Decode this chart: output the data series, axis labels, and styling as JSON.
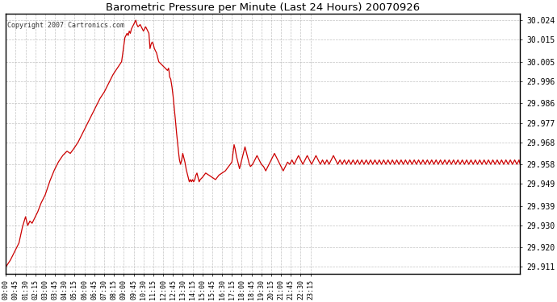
{
  "title": "Barometric Pressure per Minute (Last 24 Hours) 20070926",
  "copyright": "Copyright 2007 Cartronics.com",
  "line_color": "#cc0000",
  "bg_color": "#ffffff",
  "plot_bg_color": "#ffffff",
  "grid_color": "#aaaaaa",
  "yticks": [
    29.911,
    29.92,
    29.93,
    29.939,
    29.949,
    29.958,
    29.968,
    29.977,
    29.986,
    29.996,
    30.005,
    30.015,
    30.024
  ],
  "ylim": [
    29.908,
    30.027
  ],
  "xtick_labels": [
    "00:00",
    "00:45",
    "01:30",
    "02:15",
    "03:00",
    "03:45",
    "04:30",
    "05:15",
    "06:00",
    "06:45",
    "07:30",
    "08:15",
    "09:00",
    "09:45",
    "10:30",
    "11:15",
    "12:00",
    "12:45",
    "13:30",
    "14:15",
    "15:00",
    "15:45",
    "16:30",
    "17:15",
    "18:00",
    "18:45",
    "19:30",
    "20:15",
    "21:00",
    "21:45",
    "22:30",
    "23:15"
  ],
  "key_points": [
    [
      0,
      29.911
    ],
    [
      20,
      29.914
    ],
    [
      40,
      29.918
    ],
    [
      60,
      29.922
    ],
    [
      75,
      29.929
    ],
    [
      90,
      29.934
    ],
    [
      100,
      29.93
    ],
    [
      110,
      29.932
    ],
    [
      120,
      29.931
    ],
    [
      130,
      29.933
    ],
    [
      145,
      29.936
    ],
    [
      160,
      29.94
    ],
    [
      180,
      29.944
    ],
    [
      200,
      29.95
    ],
    [
      220,
      29.955
    ],
    [
      240,
      29.959
    ],
    [
      260,
      29.962
    ],
    [
      280,
      29.964
    ],
    [
      295,
      29.963
    ],
    [
      310,
      29.965
    ],
    [
      330,
      29.968
    ],
    [
      350,
      29.972
    ],
    [
      370,
      29.976
    ],
    [
      390,
      29.98
    ],
    [
      410,
      29.984
    ],
    [
      430,
      29.988
    ],
    [
      450,
      29.991
    ],
    [
      470,
      29.995
    ],
    [
      490,
      29.999
    ],
    [
      510,
      30.002
    ],
    [
      530,
      30.005
    ],
    [
      545,
      30.016
    ],
    [
      555,
      30.018
    ],
    [
      560,
      30.017
    ],
    [
      565,
      30.019
    ],
    [
      570,
      30.018
    ],
    [
      575,
      30.02
    ],
    [
      580,
      30.021
    ],
    [
      585,
      30.022
    ],
    [
      590,
      30.023
    ],
    [
      595,
      30.024
    ],
    [
      600,
      30.022
    ],
    [
      605,
      30.021
    ],
    [
      615,
      30.022
    ],
    [
      620,
      30.021
    ],
    [
      625,
      30.02
    ],
    [
      630,
      30.019
    ],
    [
      635,
      30.02
    ],
    [
      640,
      30.021
    ],
    [
      645,
      30.02
    ],
    [
      650,
      30.019
    ],
    [
      655,
      30.018
    ],
    [
      660,
      30.011
    ],
    [
      665,
      30.013
    ],
    [
      670,
      30.014
    ],
    [
      675,
      30.013
    ],
    [
      680,
      30.011
    ],
    [
      685,
      30.01
    ],
    [
      690,
      30.009
    ],
    [
      695,
      30.007
    ],
    [
      700,
      30.005
    ],
    [
      710,
      30.004
    ],
    [
      720,
      30.003
    ],
    [
      730,
      30.002
    ],
    [
      740,
      30.001
    ],
    [
      745,
      30.002
    ],
    [
      748,
      30.0
    ],
    [
      750,
      29.998
    ],
    [
      755,
      29.997
    ],
    [
      760,
      29.994
    ],
    [
      765,
      29.99
    ],
    [
      770,
      29.985
    ],
    [
      775,
      29.98
    ],
    [
      780,
      29.974
    ],
    [
      785,
      29.969
    ],
    [
      790,
      29.964
    ],
    [
      795,
      29.96
    ],
    [
      800,
      29.958
    ],
    [
      805,
      29.96
    ],
    [
      810,
      29.963
    ],
    [
      815,
      29.961
    ],
    [
      820,
      29.959
    ],
    [
      825,
      29.956
    ],
    [
      830,
      29.954
    ],
    [
      835,
      29.952
    ],
    [
      840,
      29.95
    ],
    [
      845,
      29.951
    ],
    [
      850,
      29.95
    ],
    [
      855,
      29.951
    ],
    [
      860,
      29.95
    ],
    [
      865,
      29.951
    ],
    [
      870,
      29.953
    ],
    [
      875,
      29.954
    ],
    [
      880,
      29.952
    ],
    [
      885,
      29.95
    ],
    [
      890,
      29.951
    ],
    [
      900,
      29.952
    ],
    [
      915,
      29.954
    ],
    [
      930,
      29.953
    ],
    [
      945,
      29.952
    ],
    [
      960,
      29.951
    ],
    [
      975,
      29.953
    ],
    [
      990,
      29.954
    ],
    [
      1005,
      29.955
    ],
    [
      1020,
      29.957
    ],
    [
      1035,
      29.959
    ],
    [
      1040,
      29.963
    ],
    [
      1045,
      29.967
    ],
    [
      1050,
      29.965
    ],
    [
      1055,
      29.962
    ],
    [
      1060,
      29.96
    ],
    [
      1065,
      29.958
    ],
    [
      1070,
      29.956
    ],
    [
      1075,
      29.958
    ],
    [
      1080,
      29.96
    ],
    [
      1085,
      29.962
    ],
    [
      1090,
      29.964
    ],
    [
      1095,
      29.966
    ],
    [
      1100,
      29.964
    ],
    [
      1105,
      29.962
    ],
    [
      1110,
      29.96
    ],
    [
      1115,
      29.958
    ],
    [
      1120,
      29.957
    ],
    [
      1130,
      29.958
    ],
    [
      1140,
      29.96
    ],
    [
      1150,
      29.962
    ],
    [
      1160,
      29.96
    ],
    [
      1170,
      29.958
    ],
    [
      1180,
      29.957
    ],
    [
      1190,
      29.955
    ],
    [
      1200,
      29.957
    ],
    [
      1210,
      29.959
    ],
    [
      1220,
      29.961
    ],
    [
      1230,
      29.963
    ],
    [
      1240,
      29.961
    ],
    [
      1250,
      29.959
    ],
    [
      1260,
      29.957
    ],
    [
      1270,
      29.955
    ],
    [
      1280,
      29.957
    ],
    [
      1290,
      29.959
    ],
    [
      1300,
      29.958
    ],
    [
      1310,
      29.96
    ],
    [
      1320,
      29.958
    ],
    [
      1330,
      29.96
    ],
    [
      1340,
      29.962
    ],
    [
      1350,
      29.96
    ],
    [
      1360,
      29.958
    ],
    [
      1370,
      29.96
    ],
    [
      1380,
      29.962
    ],
    [
      1390,
      29.96
    ],
    [
      1400,
      29.958
    ],
    [
      1410,
      29.96
    ],
    [
      1420,
      29.962
    ],
    [
      1430,
      29.96
    ],
    [
      1440,
      29.958
    ],
    [
      1450,
      29.96
    ],
    [
      1460,
      29.958
    ],
    [
      1470,
      29.96
    ],
    [
      1480,
      29.958
    ],
    [
      1490,
      29.96
    ],
    [
      1500,
      29.962
    ],
    [
      1510,
      29.96
    ],
    [
      1520,
      29.958
    ],
    [
      1530,
      29.96
    ],
    [
      1540,
      29.958
    ],
    [
      1550,
      29.96
    ],
    [
      1560,
      29.958
    ],
    [
      1570,
      29.96
    ],
    [
      1580,
      29.958
    ],
    [
      1590,
      29.96
    ],
    [
      1600,
      29.958
    ],
    [
      1610,
      29.96
    ],
    [
      1620,
      29.958
    ],
    [
      1630,
      29.96
    ],
    [
      1640,
      29.958
    ],
    [
      1650,
      29.96
    ],
    [
      1660,
      29.958
    ],
    [
      1670,
      29.96
    ],
    [
      1680,
      29.958
    ],
    [
      1690,
      29.96
    ],
    [
      1700,
      29.958
    ],
    [
      1710,
      29.96
    ],
    [
      1720,
      29.958
    ],
    [
      1730,
      29.96
    ],
    [
      1740,
      29.958
    ],
    [
      1750,
      29.96
    ],
    [
      1760,
      29.958
    ],
    [
      1770,
      29.96
    ],
    [
      1780,
      29.958
    ],
    [
      1790,
      29.96
    ],
    [
      1800,
      29.958
    ],
    [
      1810,
      29.96
    ],
    [
      1820,
      29.958
    ],
    [
      1830,
      29.96
    ],
    [
      1840,
      29.958
    ],
    [
      1850,
      29.96
    ],
    [
      1860,
      29.958
    ],
    [
      1870,
      29.96
    ],
    [
      1880,
      29.958
    ],
    [
      1890,
      29.96
    ],
    [
      1900,
      29.958
    ],
    [
      1910,
      29.96
    ],
    [
      1920,
      29.958
    ],
    [
      1930,
      29.96
    ],
    [
      1940,
      29.958
    ],
    [
      1950,
      29.96
    ],
    [
      1960,
      29.958
    ],
    [
      1970,
      29.96
    ],
    [
      1980,
      29.958
    ],
    [
      1990,
      29.96
    ],
    [
      2000,
      29.958
    ],
    [
      2010,
      29.96
    ],
    [
      2020,
      29.958
    ],
    [
      2030,
      29.96
    ],
    [
      2040,
      29.958
    ],
    [
      2050,
      29.96
    ],
    [
      2060,
      29.958
    ],
    [
      2070,
      29.96
    ],
    [
      2080,
      29.958
    ],
    [
      2090,
      29.96
    ],
    [
      2100,
      29.958
    ],
    [
      2110,
      29.96
    ],
    [
      2120,
      29.958
    ],
    [
      2130,
      29.96
    ],
    [
      2140,
      29.958
    ],
    [
      2150,
      29.96
    ],
    [
      2160,
      29.958
    ],
    [
      2170,
      29.96
    ],
    [
      2180,
      29.958
    ],
    [
      2190,
      29.96
    ],
    [
      2200,
      29.958
    ],
    [
      2210,
      29.96
    ],
    [
      2220,
      29.958
    ],
    [
      2230,
      29.96
    ],
    [
      2240,
      29.958
    ],
    [
      2250,
      29.96
    ],
    [
      2260,
      29.958
    ],
    [
      2270,
      29.96
    ],
    [
      2280,
      29.958
    ],
    [
      2290,
      29.96
    ],
    [
      2300,
      29.958
    ],
    [
      2310,
      29.96
    ],
    [
      2320,
      29.958
    ],
    [
      2330,
      29.96
    ],
    [
      2340,
      29.958
    ],
    [
      2350,
      29.96
    ],
    [
      2355,
      29.958
    ]
  ]
}
